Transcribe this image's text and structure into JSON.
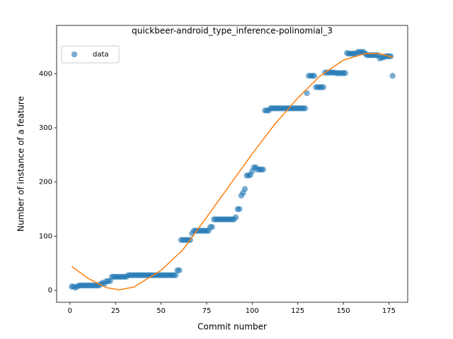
{
  "chart_data": {
    "type": "scatter",
    "title": "quickbeer-android_type_inference-polinomial_3",
    "xlabel": "Commit number",
    "ylabel": "Number of instance of a feature",
    "xlim": [
      -7.3,
      185.3
    ],
    "ylim": [
      -22,
      489
    ],
    "xticks": [
      0,
      25,
      50,
      75,
      100,
      125,
      150,
      175
    ],
    "yticks": [
      0,
      100,
      200,
      300,
      400
    ],
    "legend": "upper left",
    "series": [
      {
        "name": "data",
        "color": "#1f77b4",
        "type": "scatter",
        "x": [
          1,
          2,
          3,
          4,
          5,
          6,
          7,
          8,
          9,
          10,
          11,
          12,
          13,
          14,
          15,
          16,
          17,
          18,
          19,
          20,
          21,
          22,
          23,
          24,
          25,
          26,
          27,
          28,
          29,
          30,
          31,
          32,
          33,
          34,
          35,
          36,
          37,
          38,
          39,
          40,
          41,
          42,
          43,
          44,
          45,
          46,
          47,
          48,
          49,
          50,
          51,
          52,
          53,
          54,
          55,
          56,
          57,
          58,
          59,
          60,
          61,
          62,
          63,
          64,
          65,
          66,
          67,
          68,
          69,
          70,
          71,
          72,
          73,
          74,
          75,
          76,
          77,
          78,
          79,
          80,
          81,
          82,
          83,
          84,
          85,
          86,
          87,
          88,
          89,
          90,
          91,
          92,
          93,
          94,
          95,
          96,
          97,
          98,
          99,
          100,
          101,
          102,
          103,
          104,
          105,
          106,
          107,
          108,
          109,
          110,
          111,
          112,
          113,
          114,
          115,
          116,
          117,
          118,
          119,
          120,
          121,
          122,
          123,
          124,
          125,
          126,
          127,
          128,
          129,
          130,
          131,
          132,
          133,
          134,
          135,
          136,
          137,
          138,
          139,
          140,
          141,
          142,
          143,
          144,
          145,
          146,
          147,
          148,
          149,
          150,
          151,
          152,
          153,
          154,
          155,
          156,
          157,
          158,
          159,
          160,
          161,
          162,
          163,
          164,
          165,
          166,
          167,
          168,
          169,
          170,
          171,
          172,
          173,
          174,
          175,
          176,
          177
        ],
        "values": [
          7,
          7,
          5,
          7,
          9,
          9,
          9,
          9,
          9,
          9,
          9,
          9,
          9,
          9,
          9,
          9,
          12,
          14,
          12,
          17,
          17,
          17,
          25,
          25,
          25,
          25,
          25,
          25,
          25,
          25,
          25,
          28,
          28,
          28,
          28,
          28,
          28,
          28,
          28,
          28,
          28,
          28,
          28,
          28,
          28,
          28,
          28,
          28,
          28,
          28,
          28,
          28,
          28,
          28,
          28,
          28,
          28,
          28,
          37,
          37,
          93,
          93,
          93,
          93,
          93,
          93,
          105,
          110,
          110,
          110,
          110,
          110,
          110,
          110,
          110,
          110,
          117,
          117,
          131,
          131,
          131,
          131,
          131,
          131,
          131,
          131,
          131,
          131,
          131,
          131,
          135,
          150,
          150,
          175,
          180,
          187,
          212,
          212,
          213,
          220,
          227,
          227,
          223,
          223,
          223,
          223,
          332,
          332,
          332,
          336,
          336,
          336,
          336,
          336,
          336,
          336,
          336,
          336,
          336,
          336,
          336,
          336,
          336,
          336,
          336,
          336,
          336,
          336,
          336,
          364,
          396,
          396,
          396,
          396,
          375,
          375,
          375,
          375,
          375,
          402,
          402,
          402,
          402,
          402,
          402,
          401,
          401,
          401,
          401,
          401,
          401,
          438,
          437,
          437,
          437,
          437,
          437,
          440,
          440,
          440,
          440,
          437,
          434,
          434,
          434,
          434,
          434,
          434,
          434,
          428,
          430,
          430,
          432,
          432,
          432,
          432,
          396
        ]
      },
      {
        "color": "#ff7f0e",
        "type": "line",
        "x": [
          1,
          10,
          20,
          27,
          35,
          50,
          62,
          75,
          90,
          100,
          112,
          125,
          137,
          150,
          162,
          170,
          177
        ],
        "values": [
          44,
          22,
          5,
          1,
          6,
          37,
          75,
          135,
          205,
          252,
          305,
          355,
          395,
          425,
          437,
          437,
          430
        ]
      }
    ]
  }
}
